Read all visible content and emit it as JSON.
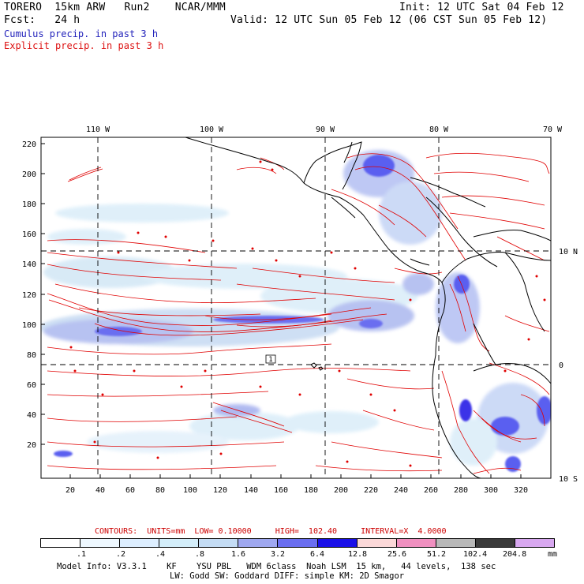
{
  "header": {
    "line1_left": "TORERO  15km ARW   Run2    NCAR/MMM",
    "line1_right": "Init: 12 UTC Sat 04 Feb 12",
    "line2_left": "Fcst:   24 h",
    "line2_right": "Valid: 12 UTC Sun 05 Feb 12 (06 CST Sun 05 Feb 12)",
    "field1": "Cumulus precip. in past 3 h",
    "field2": "Explicit precip. in past 3 h"
  },
  "map": {
    "lon_labels": [
      "110 W",
      "100 W",
      "90 W",
      "80 W",
      "70 W"
    ],
    "lat_labels": [
      "10 N",
      "0",
      "10 S"
    ],
    "y_ticks": [
      "220",
      "200",
      "180",
      "160",
      "140",
      "120",
      "100",
      "80",
      "60",
      "40",
      "20"
    ],
    "x_ticks": [
      "20",
      "40",
      "60",
      "80",
      "100",
      "120",
      "140",
      "160",
      "180",
      "200",
      "220",
      "240",
      "260",
      "280",
      "300",
      "320"
    ],
    "box_label": "1"
  },
  "contours": {
    "text": "CONTOURS:  UNITS=mm  LOW= 0.10000     HIGH=  102.40     INTERVAL=X  4.0000"
  },
  "legend": {
    "labels": [
      ".1",
      ".2",
      ".4",
      ".8",
      "1.6",
      "3.2",
      "6.4",
      "12.8",
      "25.6",
      "51.2",
      "102.4",
      "204.8"
    ],
    "units": "mm",
    "colors": [
      "#ffffff",
      "#eef8ff",
      "#ddeeff",
      "#d4eefa",
      "#c4dcf4",
      "#9fa8f0",
      "#6a6ef0",
      "#1a10e8",
      "#fbd8d8",
      "#f090c0",
      "#b8b8b8",
      "#3a3a3a",
      "#d8a8f0"
    ]
  },
  "model_info": {
    "line1": "Model Info: V3.3.1    KF    YSU PBL   WDM 6class  Noah LSM  15 km,   44 levels,  138 sec",
    "line2": "LW: Godd SW: Goddard DIFF: simple KM: 2D Smagor"
  }
}
